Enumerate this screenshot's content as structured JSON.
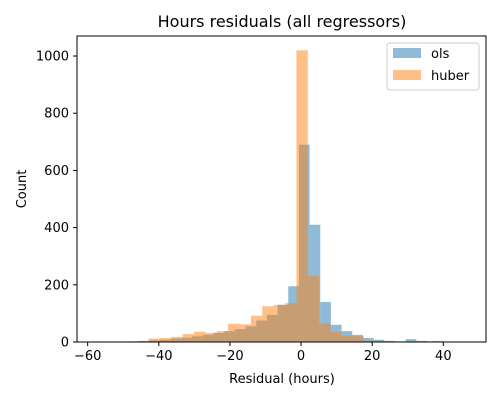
{
  "chart_data": {
    "type": "bar",
    "title": "Hours residuals (all regressors)",
    "xlabel": "Residual (hours)",
    "ylabel": "Count",
    "xlim": [
      -63,
      52
    ],
    "ylim": [
      0,
      1070
    ],
    "xticks": [
      -60,
      -40,
      -20,
      0,
      20,
      40
    ],
    "yticks": [
      0,
      200,
      400,
      600,
      800,
      1000
    ],
    "grid": false,
    "legend": "upper right",
    "alpha": 0.5,
    "series": [
      {
        "name": "ols",
        "color": "#1f77b4",
        "bin_edges": [
          -54.6,
          -51.6,
          -48.6,
          -45.6,
          -42.6,
          -39.6,
          -36.6,
          -33.6,
          -30.6,
          -27.6,
          -24.6,
          -21.6,
          -18.6,
          -15.6,
          -12.6,
          -9.6,
          -6.6,
          -3.6,
          -0.6,
          2.4,
          5.4,
          8.4,
          11.4,
          14.4,
          17.4,
          20.4,
          23.4,
          26.4,
          29.4,
          32.4,
          35.4,
          38.4,
          41.4,
          44.4,
          47.4
        ],
        "counts": [
          1,
          1,
          2,
          3,
          6,
          8,
          12,
          15,
          20,
          25,
          32,
          38,
          45,
          55,
          75,
          95,
          130,
          195,
          690,
          410,
          140,
          60,
          38,
          25,
          14,
          8,
          4,
          2,
          10,
          4,
          2,
          1,
          1,
          1
        ]
      },
      {
        "name": "huber",
        "color": "#ff7f0e",
        "bin_edges": [
          -58.9,
          -55.7,
          -52.5,
          -49.3,
          -46.1,
          -42.9,
          -39.7,
          -36.5,
          -33.3,
          -30.1,
          -26.9,
          -23.7,
          -20.5,
          -17.3,
          -14.1,
          -10.9,
          -7.7,
          -4.5,
          -1.3,
          1.9,
          5.1,
          8.3,
          11.3,
          14.5,
          17.7,
          20.9,
          24.1,
          27.3,
          30.5,
          33.7,
          36.9,
          40.1,
          43.3
        ],
        "counts": [
          2,
          1,
          1,
          2,
          4,
          12,
          14,
          18,
          28,
          36,
          32,
          38,
          64,
          62,
          92,
          125,
          130,
          136,
          1020,
          232,
          65,
          36,
          22,
          20,
          5,
          2,
          1,
          1,
          1,
          1,
          4,
          1
        ]
      }
    ]
  }
}
